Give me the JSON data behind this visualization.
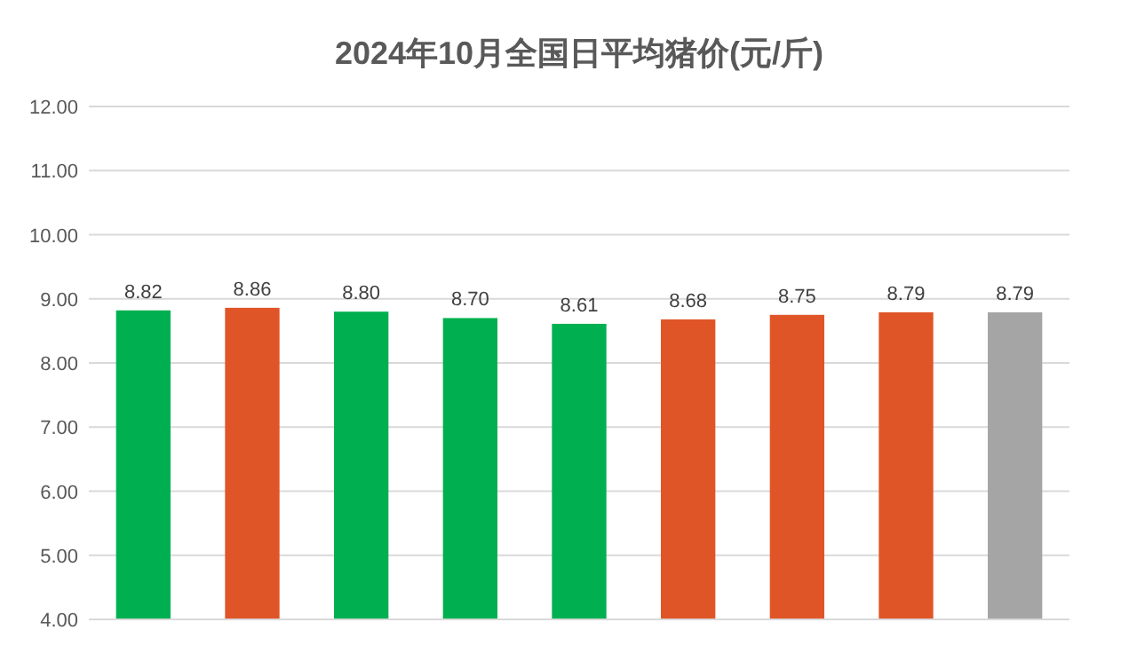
{
  "chart_data": {
    "type": "bar",
    "title": "2024年10月全国日平均猪价(元/斤)",
    "categories": [
      null,
      null,
      null,
      null,
      null,
      null,
      null,
      null,
      null
    ],
    "values": [
      8.82,
      8.86,
      8.8,
      8.7,
      8.61,
      8.68,
      8.75,
      8.79,
      8.79
    ],
    "value_labels": [
      "8.82",
      "8.86",
      "8.80",
      "8.70",
      "8.61",
      "8.68",
      "8.75",
      "8.79",
      "8.79"
    ],
    "colors": [
      "#00b050",
      "#e05528",
      "#00b050",
      "#00b050",
      "#00b050",
      "#e05528",
      "#e05528",
      "#e05528",
      "#a5a5a5"
    ],
    "ylim": [
      4,
      12
    ],
    "yticks": [
      {
        "value": 4,
        "label": "4.00"
      },
      {
        "value": 5,
        "label": "5.00"
      },
      {
        "value": 6,
        "label": "6.00"
      },
      {
        "value": 7,
        "label": "7.00"
      },
      {
        "value": 8,
        "label": "8.00"
      },
      {
        "value": 9,
        "label": "9.00"
      },
      {
        "value": 10,
        "label": "10.00"
      },
      {
        "value": 11,
        "label": "11.00"
      },
      {
        "value": 12,
        "label": "12.00"
      }
    ],
    "grid": "y"
  }
}
